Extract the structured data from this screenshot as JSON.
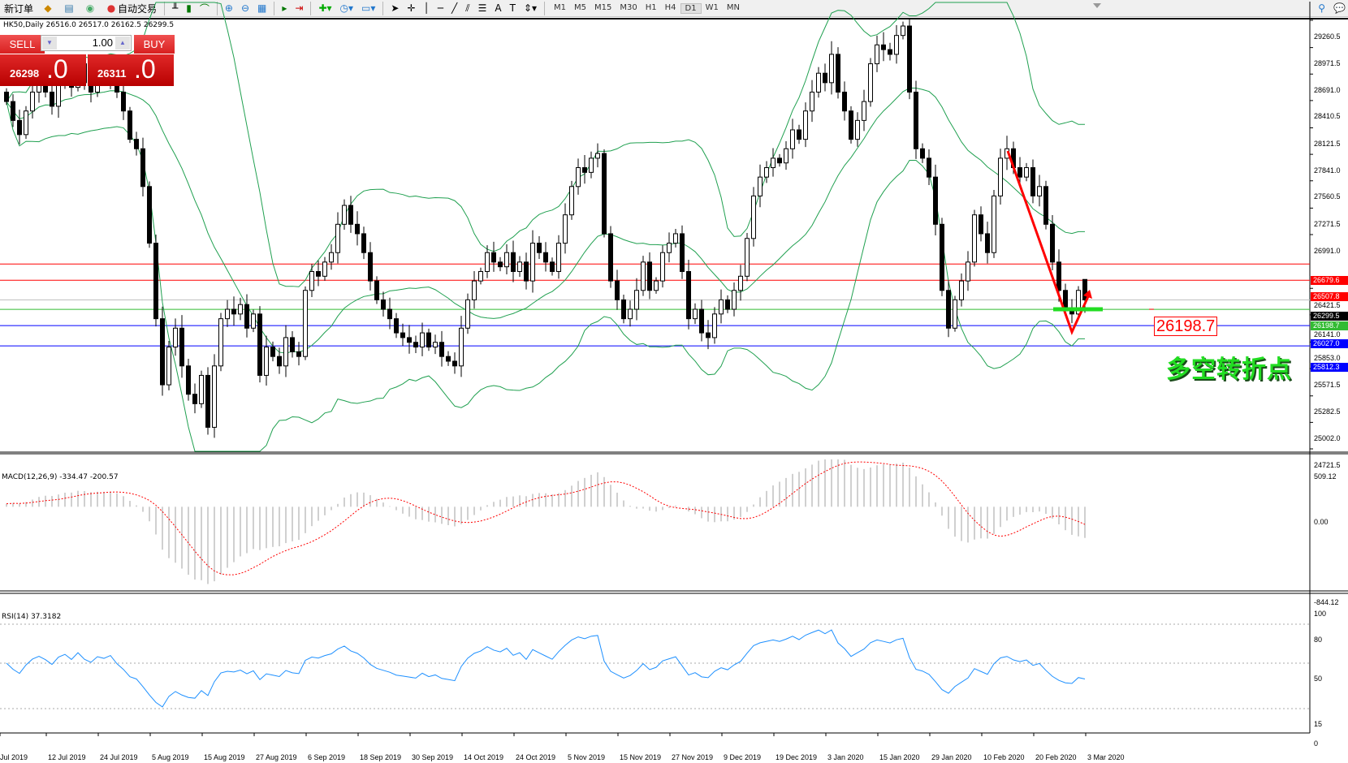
{
  "toolbar": {
    "new_order": "新订单",
    "auto_trading": "自动交易",
    "timeframes": [
      "M1",
      "M5",
      "M15",
      "M30",
      "H1",
      "H4",
      "D1",
      "W1",
      "MN"
    ],
    "active_timeframe": "D1"
  },
  "chart": {
    "header": "HK50,Daily  26516.0 26517.0 26162.5 26299.5",
    "symbol": "HK50",
    "period": "Daily",
    "last_bar": {
      "open": 26516.0,
      "high": 26517.0,
      "low": 26162.5,
      "close": 26299.5
    },
    "closes": [
      28400,
      28200,
      28050,
      28300,
      28500,
      28600,
      28500,
      28350,
      28600,
      28700,
      28550,
      28800,
      28600,
      28500,
      28700,
      28650,
      28750,
      28500,
      28300,
      28000,
      27900,
      27500,
      26900,
      26100,
      25400,
      25800,
      26000,
      25600,
      25300,
      25200,
      25500,
      24950,
      25600,
      26100,
      26200,
      26150,
      26250,
      26000,
      26150,
      25500,
      25800,
      25700,
      25600,
      25900,
      25750,
      25700,
      26400,
      26600,
      26550,
      26700,
      26800,
      27100,
      27300,
      27100,
      27000,
      26800,
      26500,
      26300,
      26200,
      26100,
      25950,
      25900,
      25850,
      25800,
      25950,
      25800,
      25850,
      25700,
      25650,
      25600,
      26000,
      26300,
      26500,
      26600,
      26800,
      26700,
      26650,
      26800,
      26600,
      26700,
      26500,
      26900,
      26800,
      26700,
      26600,
      26900,
      27200,
      27500,
      27700,
      27650,
      27800,
      27850,
      27000,
      26500,
      26300,
      26100,
      26200,
      26400,
      26700,
      26400,
      26500,
      26800,
      26900,
      27000,
      26600,
      26100,
      26200,
      25950,
      25900,
      26150,
      26300,
      26200,
      26400,
      26550,
      26950,
      27400,
      27600,
      27700,
      27800,
      27750,
      27900,
      28100,
      28000,
      28300,
      28500,
      28700,
      28600,
      28900,
      28500,
      28300,
      28000,
      28200,
      28400,
      28800,
      29000,
      28950,
      28900,
      29100,
      29200,
      28500,
      27900,
      27800,
      27600,
      27100,
      26400,
      26000,
      26300,
      26500,
      26700,
      27200,
      27000,
      26800,
      27400,
      27800,
      27900,
      27700,
      27600,
      27700,
      27400,
      27500,
      27100,
      26700,
      26400,
      26200,
      26150,
      26400,
      26299.5
    ],
    "bollinger_color": "#20a050",
    "price_axis": [
      "29260.5",
      "28971.5",
      "28691.0",
      "28410.5",
      "28121.5",
      "27841.0",
      "27560.5",
      "27271.5",
      "26991.0",
      "26421.5",
      "26141.0",
      "25853.0",
      "25571.5",
      "25282.5",
      "25002.0",
      "24721.5"
    ],
    "price_range": [
      24721.5,
      29260.5
    ],
    "levels": [
      {
        "price": "26679.6",
        "color": "#ff0000"
      },
      {
        "price": "26507.8",
        "color": "#ff0000"
      },
      {
        "price": "26299.5",
        "color": "#000000",
        "line": "#c0c0c0"
      },
      {
        "price": "26198.7",
        "color": "#33bb33",
        "line": "#33bb33"
      },
      {
        "price": "26027.0",
        "color": "#0000ff"
      },
      {
        "price": "25812.3",
        "color": "#0000ff"
      }
    ],
    "annotation_price": "26198.7",
    "annotation_text": "多空转折点",
    "dates": [
      "Jul 2019",
      "12 Jul 2019",
      "24 Jul 2019",
      "5 Aug 2019",
      "15 Aug 2019",
      "27 Aug 2019",
      "6 Sep 2019",
      "18 Sep 2019",
      "30 Sep 2019",
      "14 Oct 2019",
      "24 Oct 2019",
      "5 Nov 2019",
      "15 Nov 2019",
      "27 Nov 2019",
      "9 Dec 2019",
      "19 Dec 2019",
      "3 Jan 2020",
      "15 Jan 2020",
      "29 Jan 2020",
      "10 Feb 2020",
      "20 Feb 2020",
      "3 Mar 2020"
    ]
  },
  "one_click": {
    "sell": "SELL",
    "buy": "BUY",
    "lot": "1.00",
    "sell_price_main": "26298",
    "sell_price_frac": ".0",
    "buy_price_main": "26311",
    "buy_price_frac": ".0"
  },
  "macd": {
    "label": "MACD(12,26,9) -334.47 -200.57",
    "axis_max": "509.12",
    "axis_zero": "0.00",
    "axis_min": "-844.12",
    "range": [
      -844.12,
      509.12
    ]
  },
  "rsi": {
    "label": "RSI(14) 37.3182",
    "axis": [
      "100",
      "80",
      "50",
      "15",
      "0"
    ],
    "levels": [
      80,
      50,
      15
    ]
  }
}
